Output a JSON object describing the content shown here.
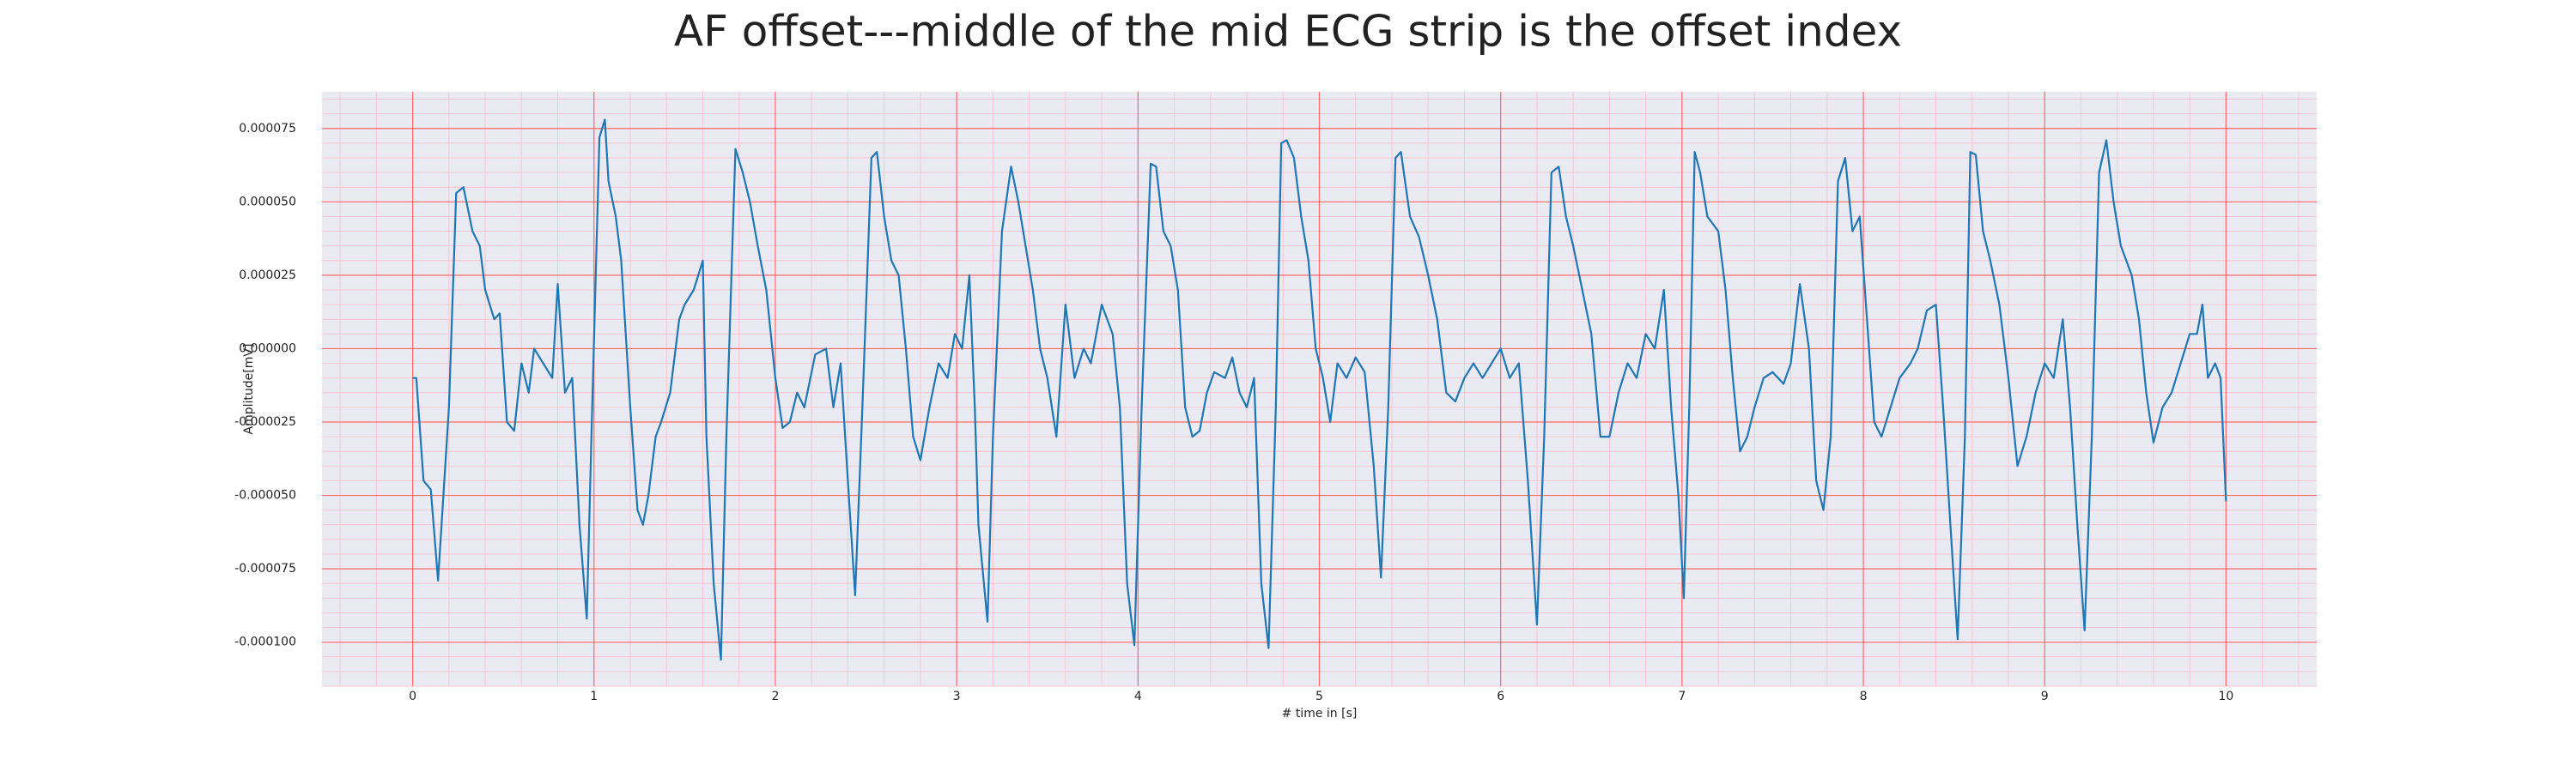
{
  "chart_data": {
    "type": "line",
    "title": "AF offset---middle of the mid ECG strip is the offset index",
    "x_label": "# time in [s]",
    "y_label": "Amplitude[mV]",
    "xlim": [
      -0.5,
      10.5
    ],
    "ylim": [
      -0.000115,
      8.75e-05
    ],
    "xticks": [
      0,
      1,
      2,
      3,
      4,
      5,
      6,
      7,
      8,
      9,
      10
    ],
    "yticks": [
      {
        "value": -0.0001,
        "label": "-0.000100"
      },
      {
        "value": -7.5e-05,
        "label": "-0.000075"
      },
      {
        "value": -5e-05,
        "label": "-0.000050"
      },
      {
        "value": -2.5e-05,
        "label": "-0.000025"
      },
      {
        "value": 0,
        "label": "0.000000"
      },
      {
        "value": 2.5e-05,
        "label": "0.000025"
      },
      {
        "value": 5e-05,
        "label": "0.000050"
      },
      {
        "value": 7.5e-05,
        "label": "0.000075"
      }
    ],
    "grid": true,
    "minor_grid": true,
    "background": "#eaeaf2",
    "grid_color": "#ff6b6b",
    "minor_grid_color": "#f7c6d0",
    "series": [
      {
        "color": "#1f77b4",
        "x": [
          0,
          0.02,
          0.06,
          0.1,
          0.14,
          0.2,
          0.24,
          0.28,
          0.33,
          0.37,
          0.4,
          0.45,
          0.48,
          0.52,
          0.56,
          0.6,
          0.64,
          0.67,
          0.72,
          0.77,
          0.8,
          0.84,
          0.88,
          0.92,
          0.96,
          0.99,
          1.03,
          1.06,
          1.08,
          1.12,
          1.15,
          1.2,
          1.24,
          1.27,
          1.3,
          1.34,
          1.37,
          1.42,
          1.47,
          1.5,
          1.55,
          1.6,
          1.62,
          1.66,
          1.7,
          1.73,
          1.78,
          1.82,
          1.86,
          1.9,
          1.95,
          2.0,
          2.04,
          2.08,
          2.12,
          2.16,
          2.22,
          2.28,
          2.32,
          2.36,
          2.4,
          2.44,
          2.48,
          2.53,
          2.56,
          2.6,
          2.64,
          2.68,
          2.72,
          2.76,
          2.8,
          2.85,
          2.9,
          2.95,
          2.99,
          3.03,
          3.07,
          3.1,
          3.12,
          3.17,
          3.2,
          3.25,
          3.3,
          3.34,
          3.38,
          3.42,
          3.46,
          3.5,
          3.55,
          3.6,
          3.65,
          3.7,
          3.74,
          3.8,
          3.86,
          3.9,
          3.94,
          3.98,
          4.02,
          4.07,
          4.1,
          4.14,
          4.18,
          4.22,
          4.26,
          4.3,
          4.34,
          4.38,
          4.42,
          4.48,
          4.52,
          4.56,
          4.6,
          4.64,
          4.68,
          4.72,
          4.76,
          4.79,
          4.82,
          4.86,
          4.9,
          4.94,
          4.98,
          5.02,
          5.06,
          5.1,
          5.15,
          5.2,
          5.25,
          5.3,
          5.34,
          5.38,
          5.42,
          5.45,
          5.5,
          5.55,
          5.6,
          5.65,
          5.7,
          5.75,
          5.8,
          5.85,
          5.9,
          5.95,
          6.0,
          6.05,
          6.1,
          6.15,
          6.2,
          6.24,
          6.28,
          6.32,
          6.36,
          6.4,
          6.45,
          6.5,
          6.55,
          6.6,
          6.65,
          6.7,
          6.75,
          6.8,
          6.85,
          6.9,
          6.94,
          6.98,
          7.01,
          7.04,
          7.07,
          7.1,
          7.14,
          7.2,
          7.24,
          7.28,
          7.32,
          7.36,
          7.4,
          7.45,
          7.5,
          7.56,
          7.6,
          7.65,
          7.7,
          7.74,
          7.78,
          7.82,
          7.86,
          7.9,
          7.94,
          7.98,
          8.02,
          8.06,
          8.1,
          8.15,
          8.2,
          8.26,
          8.3,
          8.35,
          8.4,
          8.44,
          8.48,
          8.52,
          8.56,
          8.59,
          8.62,
          8.66,
          8.7,
          8.75,
          8.8,
          8.85,
          8.9,
          8.95,
          9.0,
          9.05,
          9.1,
          9.14,
          9.18,
          9.22,
          9.26,
          9.3,
          9.34,
          9.38,
          9.42,
          9.48,
          9.52,
          9.56,
          9.6,
          9.65,
          9.7,
          9.75,
          9.8,
          9.84,
          9.87,
          9.9,
          9.94,
          9.97,
          10.0
        ],
        "values": [
          -1e-05,
          -1e-05,
          -4.5e-05,
          -4.8e-05,
          -7.9e-05,
          -2e-05,
          5.3e-05,
          5.5e-05,
          4e-05,
          3.5e-05,
          2e-05,
          1e-05,
          1.2e-05,
          -2.5e-05,
          -2.8e-05,
          -5e-06,
          -1.5e-05,
          0,
          -5e-06,
          -1e-05,
          2.2e-05,
          -1.5e-05,
          -1e-05,
          -6e-05,
          -9.2e-05,
          -2e-05,
          7.2e-05,
          7.8e-05,
          5.7e-05,
          4.5e-05,
          3e-05,
          -2e-05,
          -5.5e-05,
          -6e-05,
          -5e-05,
          -3e-05,
          -2.5e-05,
          -1.5e-05,
          1e-05,
          1.5e-05,
          2e-05,
          3e-05,
          -3e-05,
          -8e-05,
          -0.000106,
          -3e-05,
          6.8e-05,
          6e-05,
          5e-05,
          3.6e-05,
          2e-05,
          -1e-05,
          -2.7e-05,
          -2.5e-05,
          -1.5e-05,
          -2e-05,
          -2e-06,
          0,
          -2e-05,
          -5e-06,
          -4.5e-05,
          -8.4e-05,
          -2e-05,
          6.5e-05,
          6.7e-05,
          4.5e-05,
          3e-05,
          2.5e-05,
          0,
          -3e-05,
          -3.8e-05,
          -2e-05,
          -5e-06,
          -1e-05,
          5e-06,
          0,
          2.5e-05,
          -2e-05,
          -6e-05,
          -9.3e-05,
          -3e-05,
          4e-05,
          6.2e-05,
          5e-05,
          3.5e-05,
          2e-05,
          0,
          -1e-05,
          -3e-05,
          1.5e-05,
          -1e-05,
          0,
          -5e-06,
          1.5e-05,
          5e-06,
          -2e-05,
          -8e-05,
          -0.000101,
          -2e-05,
          6.3e-05,
          6.2e-05,
          4e-05,
          3.5e-05,
          2e-05,
          -2e-05,
          -3e-05,
          -2.8e-05,
          -1.5e-05,
          -8e-06,
          -1e-05,
          -3e-06,
          -1.5e-05,
          -2e-05,
          -1e-05,
          -8e-05,
          -0.000102,
          -2e-05,
          7e-05,
          7.1e-05,
          6.5e-05,
          4.5e-05,
          3e-05,
          0,
          -1e-05,
          -2.5e-05,
          -5e-06,
          -1e-05,
          -3e-06,
          -8e-06,
          -4e-05,
          -7.8e-05,
          -2e-05,
          6.5e-05,
          6.7e-05,
          4.5e-05,
          3.8e-05,
          2.5e-05,
          1e-05,
          -1.5e-05,
          -1.8e-05,
          -1e-05,
          -5e-06,
          -1e-05,
          -5e-06,
          0,
          -1e-05,
          -5e-06,
          -4.5e-05,
          -9.4e-05,
          -3e-05,
          6e-05,
          6.2e-05,
          4.5e-05,
          3.5e-05,
          2e-05,
          5e-06,
          -3e-05,
          -3e-05,
          -1.5e-05,
          -5e-06,
          -1e-05,
          5e-06,
          0,
          2e-05,
          -2e-05,
          -5e-05,
          -8.5e-05,
          -2e-05,
          6.7e-05,
          6e-05,
          4.5e-05,
          4e-05,
          2e-05,
          -1e-05,
          -3.5e-05,
          -3e-05,
          -2e-05,
          -1e-05,
          -8e-06,
          -1.2e-05,
          -5e-06,
          2.2e-05,
          0,
          -4.5e-05,
          -5.5e-05,
          -3e-05,
          5.7e-05,
          6.5e-05,
          4e-05,
          4.5e-05,
          1e-05,
          -2.5e-05,
          -3e-05,
          -2e-05,
          -1e-05,
          -5e-06,
          0,
          1.3e-05,
          1.5e-05,
          -2e-05,
          -6e-05,
          -9.9e-05,
          -3e-05,
          6.7e-05,
          6.6e-05,
          4e-05,
          3e-05,
          1.5e-05,
          -1e-05,
          -4e-05,
          -3e-05,
          -1.5e-05,
          -5e-06,
          -1e-05,
          1e-05,
          -2e-05,
          -6e-05,
          -9.6e-05,
          -3e-05,
          6e-05,
          7.1e-05,
          5e-05,
          3.5e-05,
          2.5e-05,
          1e-05,
          -1.5e-05,
          -3.2e-05,
          -2e-05,
          -1.5e-05,
          -5e-06,
          5e-06,
          5e-06,
          1.5e-05,
          -1e-05,
          -5e-06,
          -1e-05,
          -5.2e-05
        ]
      }
    ]
  }
}
